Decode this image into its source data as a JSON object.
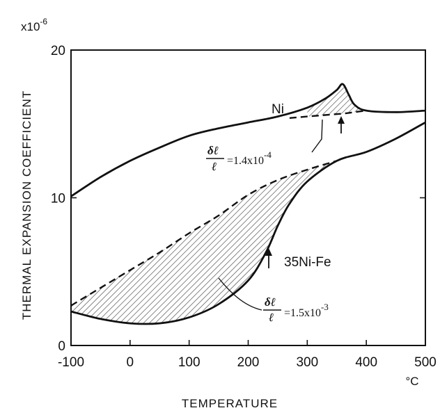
{
  "chart_data": {
    "type": "line",
    "title": "",
    "xlabel": "TEMPERATURE",
    "x_unit": "°C",
    "ylabel": "THERMAL EXPANSION COEFFICIENT",
    "y_multiplier": "x10",
    "y_multiplier_exp": "-6",
    "xlim": [
      -100,
      500
    ],
    "ylim": [
      0,
      20
    ],
    "x_ticks": [
      "-100",
      "0",
      "100",
      "200",
      "300",
      "400",
      "500"
    ],
    "y_ticks": [
      "0",
      "10",
      "20"
    ],
    "grid": false,
    "series": [
      {
        "name": "Ni",
        "x": [
          -100,
          -50,
          0,
          50,
          100,
          150,
          200,
          250,
          300,
          330,
          350,
          360,
          370,
          380,
          400,
          450,
          500
        ],
        "y": [
          10.1,
          11.4,
          12.5,
          13.4,
          14.2,
          14.7,
          15.1,
          15.5,
          16.1,
          16.7,
          17.3,
          17.7,
          17.0,
          16.3,
          15.9,
          15.8,
          15.9
        ]
      },
      {
        "name": "Ni-baseline",
        "style": "dashed",
        "x": [
          270,
          300,
          330,
          360,
          380,
          400
        ],
        "y": [
          15.4,
          15.5,
          15.6,
          15.7,
          15.8,
          15.9
        ]
      },
      {
        "name": "35Ni-Fe",
        "x": [
          -100,
          -50,
          0,
          50,
          100,
          150,
          200,
          230,
          250,
          270,
          300,
          350,
          400,
          450,
          500
        ],
        "y": [
          2.3,
          1.8,
          1.5,
          1.5,
          1.9,
          2.8,
          4.4,
          6.3,
          8.1,
          9.6,
          11.1,
          12.5,
          13.1,
          14.0,
          15.1
        ]
      },
      {
        "name": "35Ni-Fe-baseline",
        "style": "dashed",
        "x": [
          -100,
          0,
          50,
          100,
          150,
          200,
          250,
          300,
          350
        ],
        "y": [
          2.7,
          5.1,
          6.3,
          7.6,
          8.8,
          10.2,
          11.2,
          11.9,
          12.5
        ]
      }
    ],
    "annotations": [
      {
        "text_top": "δℓ",
        "text_bottom": "ℓ",
        "text_value": "=1.4x10",
        "exp": "-4"
      },
      {
        "text_top": "δℓ",
        "text_bottom": "ℓ",
        "text_value": "=1.5x10",
        "exp": "-3"
      }
    ]
  }
}
